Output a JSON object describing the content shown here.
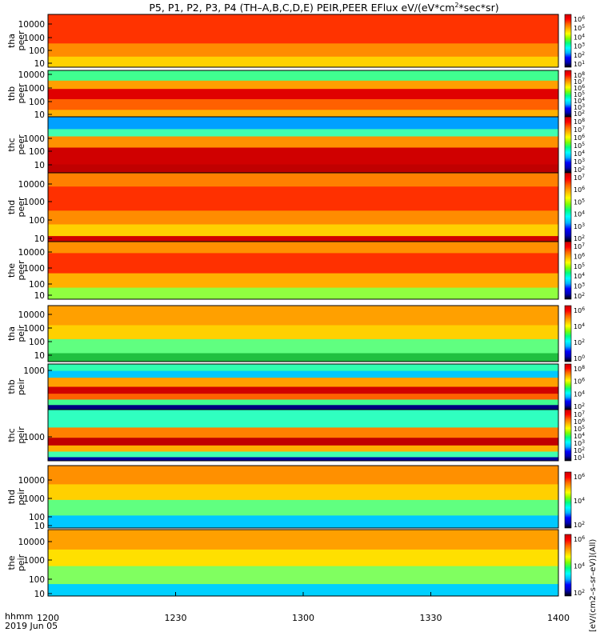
{
  "figure": {
    "title": "P5, P1, P2, P3, P4 (TH-A,B,C,D,E) PEIR,PEER EFlux eV/(eV*cm^2*sec*sr)",
    "title_parts": [
      "P5, P1, P2, P3, P4 (TH–A,B,C,D,E) PEIR,PEER EFlux eV/(eV*cm",
      "2",
      "*sec*sr)"
    ],
    "x_axis": {
      "label_line1": "hhmm",
      "label_line2": "2019 Jun 05",
      "ticks": [
        "1200",
        "1230",
        "1300",
        "1330",
        "1400"
      ]
    },
    "colorbar_label": "[eV/(cm2–s–sr–eV)](All)",
    "colormap": [
      "#000000",
      "#0000b4",
      "#0000ff",
      "#00b4ff",
      "#00ffff",
      "#00ff80",
      "#80ff00",
      "#ffff00",
      "#ffb400",
      "#ff6400",
      "#ff0000",
      "#c80000"
    ]
  },
  "chart_data": [
    {
      "type": "heatmap",
      "panel": "tha peer",
      "ylabel": [
        "tha",
        "peer"
      ],
      "log_y": true,
      "ytick_labels": [
        "10000",
        "1000",
        "100",
        "10"
      ],
      "colorbar_ticks": [
        "10^6",
        "10^5",
        "10^4",
        "10^3",
        "10^2",
        "10^1"
      ],
      "x_range": [
        "1200",
        "1400"
      ]
    },
    {
      "type": "heatmap",
      "panel": "thb peer",
      "ylabel": [
        "thb",
        "peer"
      ],
      "log_y": true,
      "ytick_labels": [
        "10000",
        "1000",
        "100",
        "10"
      ],
      "colorbar_ticks": [
        "10^8",
        "10^7",
        "10^6",
        "10^5",
        "10^4",
        "10^3",
        "10^2"
      ],
      "x_range": [
        "1200",
        "1400"
      ]
    },
    {
      "type": "heatmap",
      "panel": "thc peer",
      "ylabel": [
        "thc",
        "peer"
      ],
      "log_y": true,
      "ytick_labels": [
        "1000",
        "100",
        "10"
      ],
      "colorbar_ticks": [
        "10^8",
        "10^7",
        "10^6",
        "10^5",
        "10^4",
        "10^3",
        "10^2"
      ],
      "x_range": [
        "1200",
        "1400"
      ]
    },
    {
      "type": "heatmap",
      "panel": "thd peer",
      "ylabel": [
        "thd",
        "peer"
      ],
      "log_y": true,
      "ytick_labels": [
        "10000",
        "1000",
        "100",
        "10"
      ],
      "colorbar_ticks": [
        "10^7",
        "10^6",
        "10^5",
        "10^4",
        "10^3",
        "10^2"
      ],
      "x_range": [
        "1200",
        "1400"
      ]
    },
    {
      "type": "heatmap",
      "panel": "the peer",
      "ylabel": [
        "the",
        "peer"
      ],
      "log_y": true,
      "ytick_labels": [
        "10000",
        "1000",
        "100",
        "10"
      ],
      "colorbar_ticks": [
        "10^7",
        "10^6",
        "10^5",
        "10^4",
        "10^3",
        "10^2"
      ],
      "x_range": [
        "1200",
        "1400"
      ]
    },
    {
      "type": "heatmap",
      "panel": "tha peir",
      "ylabel": [
        "tha",
        "peir"
      ],
      "log_y": true,
      "ytick_labels": [
        "10000",
        "1000",
        "100",
        "10"
      ],
      "colorbar_ticks": [
        "10^6",
        "10^4",
        "10^2",
        "10^0"
      ],
      "x_range": [
        "1200",
        "1400"
      ]
    },
    {
      "type": "heatmap",
      "panel": "thb peir",
      "ylabel": [
        "thb",
        "peir"
      ],
      "log_y": true,
      "ytick_labels": [
        "1000"
      ],
      "colorbar_ticks": [
        "10^8",
        "10^6",
        "10^4",
        "10^2"
      ],
      "x_range": [
        "1200",
        "1400"
      ]
    },
    {
      "type": "heatmap",
      "panel": "thc peir",
      "ylabel": [
        "thc",
        "peir"
      ],
      "log_y": true,
      "ytick_labels": [
        "1000"
      ],
      "colorbar_ticks": [
        "10^7",
        "10^6",
        "10^5",
        "10^4",
        "10^3",
        "10^2",
        "10^1"
      ],
      "x_range": [
        "1200",
        "1400"
      ]
    },
    {
      "type": "heatmap",
      "panel": "thd peir",
      "ylabel": [
        "thd",
        "peir"
      ],
      "log_y": true,
      "ytick_labels": [
        "10000",
        "1000",
        "100",
        "10"
      ],
      "colorbar_ticks": [
        "10^6",
        "10^4",
        "10^2"
      ],
      "x_range": [
        "1200",
        "1400"
      ]
    },
    {
      "type": "heatmap",
      "panel": "the peir",
      "ylabel": [
        "the",
        "peir"
      ],
      "log_y": true,
      "ytick_labels": [
        "10000",
        "1000",
        "100",
        "10"
      ],
      "colorbar_ticks": [
        "10^6",
        "10^4",
        "10^2"
      ],
      "x_range": [
        "1200",
        "1400"
      ]
    }
  ]
}
